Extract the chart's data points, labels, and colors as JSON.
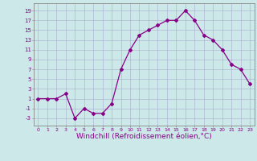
{
  "x": [
    0,
    1,
    2,
    3,
    4,
    5,
    6,
    7,
    8,
    9,
    10,
    11,
    12,
    13,
    14,
    15,
    16,
    17,
    18,
    19,
    20,
    21,
    22,
    23
  ],
  "y": [
    1,
    1,
    1,
    2,
    -3,
    -1,
    -2,
    -2,
    0,
    7,
    11,
    14,
    15,
    16,
    17,
    17,
    19,
    17,
    14,
    13,
    11,
    8,
    7,
    4
  ],
  "line_color": "#880088",
  "marker": "D",
  "marker_size": 2.0,
  "line_width": 0.9,
  "bg_color": "#cce8e8",
  "grid_color": "#aaaacc",
  "xlabel": "Windchill (Refroidissement éolien,°C)",
  "xlabel_fontsize": 6.5,
  "ytick_labels": [
    "-3",
    "-1",
    "1",
    "3",
    "5",
    "7",
    "9",
    "11",
    "13",
    "15",
    "17",
    "19"
  ],
  "ytick_values": [
    -3,
    -1,
    1,
    3,
    5,
    7,
    9,
    11,
    13,
    15,
    17,
    19
  ],
  "xlim": [
    -0.5,
    23.5
  ],
  "ylim": [
    -4.5,
    20.5
  ]
}
